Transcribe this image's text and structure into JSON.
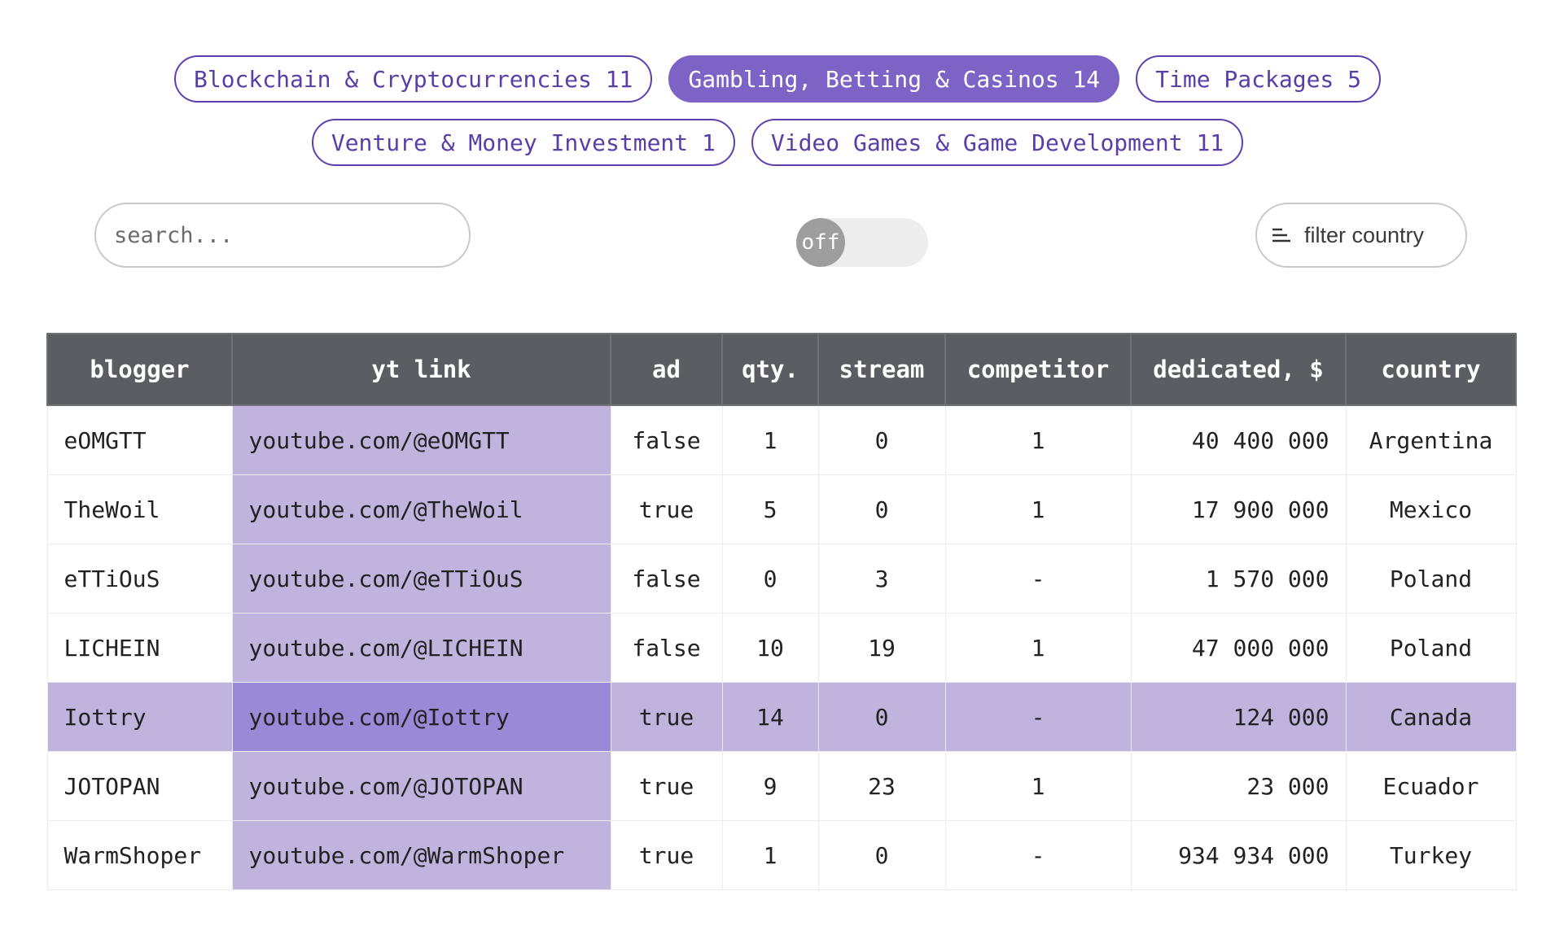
{
  "tags_row1": [
    {
      "label": "Blockchain & Cryptocurrencies 11",
      "active": false
    },
    {
      "label": "Gambling, Betting & Casinos 14",
      "active": true
    },
    {
      "label": "Time Packages 5",
      "active": false
    }
  ],
  "tags_row2": [
    {
      "label": "Venture & Money Investment 1",
      "active": false
    },
    {
      "label": "Video Games & Game Development 11",
      "active": false
    }
  ],
  "search": {
    "placeholder": "search...",
    "value": ""
  },
  "toggle": {
    "label": "off",
    "state": false
  },
  "filter": {
    "label": "filter country",
    "icon": "filter-lines-icon"
  },
  "table": {
    "columns": [
      "blogger",
      "yt link",
      "ad",
      "qty.",
      "stream",
      "competitor",
      "dedicated, $",
      "country"
    ],
    "rows": [
      {
        "blogger": "eOMGTT",
        "yt": "youtube.com/@eOMGTT",
        "ad": "false",
        "qty": "1",
        "stream": "0",
        "competitor": "1",
        "dedicated": "40 400 000",
        "country": "Argentina",
        "highlighted": false
      },
      {
        "blogger": "TheWoil",
        "yt": "youtube.com/@TheWoil",
        "ad": "true",
        "qty": "5",
        "stream": "0",
        "competitor": "1",
        "dedicated": "17 900 000",
        "country": "Mexico",
        "highlighted": false
      },
      {
        "blogger": "eTTiOuS",
        "yt": "youtube.com/@eTTiOuS",
        "ad": "false",
        "qty": "0",
        "stream": "3",
        "competitor": "-",
        "dedicated": "1 570 000",
        "country": "Poland",
        "highlighted": false
      },
      {
        "blogger": "LICHEIN",
        "yt": "youtube.com/@LICHEIN",
        "ad": "false",
        "qty": "10",
        "stream": "19",
        "competitor": "1",
        "dedicated": "47 000 000",
        "country": "Poland",
        "highlighted": false
      },
      {
        "blogger": "Iottry",
        "yt": "youtube.com/@Iottry",
        "ad": "true",
        "qty": "14",
        "stream": "0",
        "competitor": "-",
        "dedicated": "124 000",
        "country": "Canada",
        "highlighted": true
      },
      {
        "blogger": "JOTOPAN",
        "yt": "youtube.com/@JOTOPAN",
        "ad": "true",
        "qty": "9",
        "stream": "23",
        "competitor": "1",
        "dedicated": "23 000",
        "country": "Ecuador",
        "highlighted": false
      },
      {
        "blogger": "WarmShoper",
        "yt": "youtube.com/@WarmShoper",
        "ad": "true",
        "qty": "1",
        "stream": "0",
        "competitor": "-",
        "dedicated": "934 934 000",
        "country": "Turkey",
        "highlighted": false
      }
    ]
  },
  "colors": {
    "accent": "#7e63c6",
    "accent_border": "#5f3fb0",
    "link_cell": "#c0b4df",
    "link_cell_highlight": "#9a89d6",
    "header_bg": "#5a5d61"
  }
}
